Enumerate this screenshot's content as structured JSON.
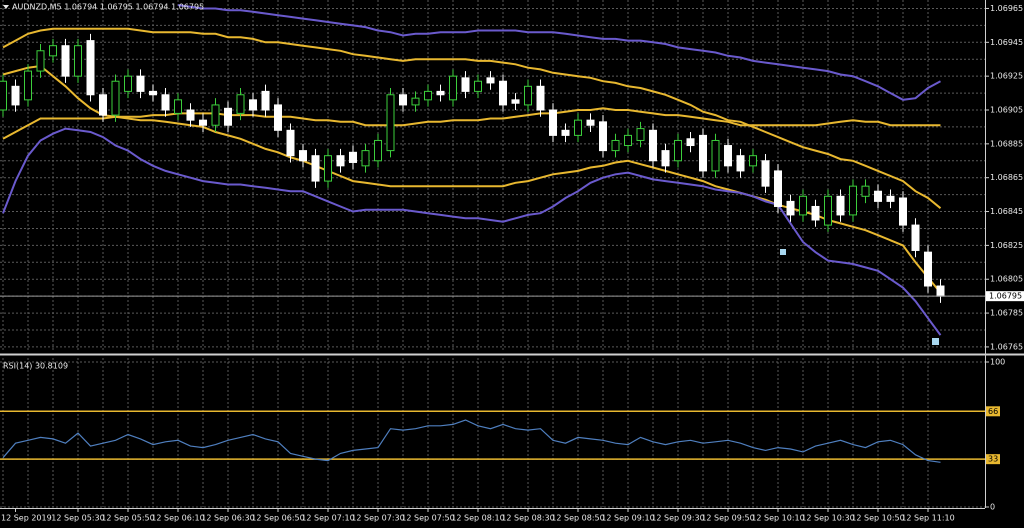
{
  "chart_data": [
    {
      "type": "candlestick",
      "title": "AUDNZD,M5 1.06794 1.06795 1.06794 1.06795",
      "categories": [
        null,
        "12 Sep 2019",
        null,
        null,
        null,
        null,
        "12 Sep 05:30",
        null,
        null,
        null,
        "12 Sep 05:50",
        null,
        null,
        null,
        "12 Sep 06:10",
        null,
        null,
        null,
        "12 Sep 06:30",
        null,
        null,
        null,
        "12 Sep 06:50",
        null,
        null,
        null,
        "12 Sep 07:10",
        null,
        null,
        null,
        "12 Sep 07:30",
        null,
        null,
        null,
        "12 Sep 07:50",
        null,
        null,
        null,
        "12 Sep 08:10",
        null,
        null,
        null,
        "12 Sep 08:30",
        null,
        null,
        null,
        "12 Sep 08:50",
        null,
        null,
        null,
        "12 Sep 09:10",
        null,
        null,
        null,
        "12 Sep 09:30",
        null,
        null,
        null,
        "12 Sep 09:50",
        null,
        null,
        null,
        "12 Sep 10:10",
        null,
        null,
        null,
        "12 Sep 10:30",
        null,
        null,
        null,
        "12 Sep 10:50",
        null,
        null,
        null,
        "12 Sep 11:10",
        null
      ],
      "open": [
        1.06905,
        1.06919,
        1.06911,
        1.06928,
        1.06937,
        1.06943,
        1.06925,
        1.06946,
        1.06914,
        1.06902,
        1.06916,
        1.06925,
        1.06916,
        1.06914,
        1.06903,
        1.06905,
        1.06899,
        1.06896,
        1.06906,
        1.06903,
        1.06911,
        1.06916,
        1.06908,
        1.06893,
        1.06881,
        1.06878,
        1.06863,
        1.06878,
        1.0688,
        1.06872,
        1.06875,
        1.06881,
        1.06914,
        1.06908,
        1.06911,
        1.06916,
        1.06911,
        1.06924,
        1.06916,
        1.06924,
        1.06922,
        1.06911,
        1.06908,
        1.06919,
        1.06905,
        1.06893,
        1.0689,
        1.06899,
        1.06898,
        1.06881,
        1.06884,
        1.06887,
        1.06893,
        1.06881,
        1.06875,
        1.06888,
        1.0689,
        1.06869,
        1.06884,
        1.06878,
        1.06872,
        1.06875,
        1.06869,
        1.06851,
        1.06843,
        1.06848,
        1.06837,
        1.06854,
        1.06843,
        1.06854,
        1.06857,
        1.06854,
        1.06853,
        1.06837,
        1.06821,
        1.06801
      ],
      "high": [
        1.06926,
        1.06923,
        1.06932,
        1.06944,
        1.06947,
        1.06947,
        1.06947,
        1.0695,
        1.06918,
        1.06926,
        1.06929,
        1.06929,
        1.0692,
        1.06918,
        1.06915,
        1.06909,
        1.06903,
        1.06912,
        1.0691,
        1.06918,
        1.06915,
        1.0692,
        1.06912,
        1.06897,
        1.06885,
        1.06882,
        1.06882,
        1.06882,
        1.06884,
        1.06885,
        1.06891,
        1.06918,
        1.06918,
        1.06916,
        1.0692,
        1.0692,
        1.06929,
        1.06928,
        1.06926,
        1.06928,
        1.06926,
        1.06915,
        1.06923,
        1.06923,
        1.06909,
        1.06897,
        1.06903,
        1.06903,
        1.06902,
        1.06891,
        1.06894,
        1.06898,
        1.06897,
        1.06885,
        1.06891,
        1.06892,
        1.06894,
        1.06891,
        1.06888,
        1.06882,
        1.06882,
        1.06879,
        1.06873,
        1.06855,
        1.06858,
        1.06852,
        1.06858,
        1.06858,
        1.06864,
        1.06864,
        1.06861,
        1.06858,
        1.06857,
        1.06841,
        1.06825,
        1.06805
      ],
      "low": [
        1.06901,
        1.06904,
        1.06907,
        1.06924,
        1.06933,
        1.06921,
        1.06921,
        1.0691,
        1.06898,
        1.06898,
        1.06912,
        1.06912,
        1.0691,
        1.06901,
        1.06899,
        1.06895,
        1.06892,
        1.06892,
        1.06892,
        1.06899,
        1.06901,
        1.06901,
        1.06889,
        1.06874,
        1.06871,
        1.06859,
        1.06859,
        1.06868,
        1.0687,
        1.06868,
        1.06871,
        1.06877,
        1.06904,
        1.06904,
        1.06907,
        1.0691,
        1.06907,
        1.06912,
        1.06912,
        1.06917,
        1.06904,
        1.06905,
        1.06904,
        1.06901,
        1.06886,
        1.06886,
        1.06886,
        1.06892,
        1.06877,
        1.06877,
        1.0688,
        1.06883,
        1.06871,
        1.06868,
        1.06871,
        1.0688,
        1.06865,
        1.06865,
        1.06868,
        1.06865,
        1.06868,
        1.06856,
        1.06844,
        1.06839,
        1.06839,
        1.06836,
        1.06833,
        1.06839,
        1.06839,
        1.0685,
        1.06847,
        1.06847,
        1.06833,
        1.06818,
        1.06797,
        1.06791
      ],
      "close": [
        1.06922,
        1.06908,
        1.06928,
        1.0694,
        1.06943,
        1.06925,
        1.06943,
        1.06914,
        1.06902,
        1.06922,
        1.06925,
        1.06916,
        1.06914,
        1.06905,
        1.06911,
        1.06899,
        1.06896,
        1.06908,
        1.06896,
        1.06914,
        1.06905,
        1.06905,
        1.06893,
        1.06878,
        1.06875,
        1.06863,
        1.06878,
        1.06872,
        1.06874,
        1.06881,
        1.06887,
        1.06914,
        1.06908,
        1.06912,
        1.06916,
        1.06914,
        1.06925,
        1.06916,
        1.06922,
        1.06921,
        1.06908,
        1.06909,
        1.06919,
        1.06905,
        1.0689,
        1.0689,
        1.06899,
        1.06896,
        1.06881,
        1.06887,
        1.0689,
        1.06894,
        1.06875,
        1.06872,
        1.06887,
        1.06884,
        1.06869,
        1.06887,
        1.06872,
        1.06869,
        1.06878,
        1.0686,
        1.06848,
        1.06843,
        1.06854,
        1.0684,
        1.06854,
        1.06843,
        1.0686,
        1.0686,
        1.06851,
        1.06851,
        1.06837,
        1.06822,
        1.06801,
        1.06795
      ],
      "up_color": "#000000",
      "up_edge": "#3ccf3c",
      "down_color": "#ffffff",
      "down_edge": "#ffffff",
      "series": [
        {
          "color": "#6a5acd",
          "values": [
            null,
            null,
            null,
            null,
            null,
            null,
            null,
            null,
            null,
            null,
            null,
            null,
            null,
            null,
            1.06967,
            1.06966,
            1.06965,
            1.06965,
            1.06964,
            1.06964,
            1.06963,
            1.06962,
            1.06961,
            1.0696,
            1.06959,
            1.06958,
            1.06957,
            1.06956,
            1.06955,
            1.06954,
            1.06952,
            1.06951,
            1.06949,
            1.0695,
            1.0695,
            1.06951,
            1.06951,
            1.06951,
            1.06952,
            1.06952,
            1.06952,
            1.06952,
            1.06951,
            1.06951,
            1.06951,
            1.0695,
            1.06949,
            1.06948,
            1.06947,
            1.06947,
            1.06946,
            1.06946,
            1.06945,
            1.06944,
            1.06942,
            1.06941,
            1.0694,
            1.06939,
            1.06937,
            1.06936,
            1.06934,
            1.06933,
            1.06932,
            1.06931,
            1.0693,
            1.06929,
            1.06928,
            1.06926,
            1.06925,
            1.06922,
            1.06919,
            1.06915,
            1.06911,
            1.06912,
            1.06918,
            1.06922
          ]
        },
        {
          "color": "#e8b830",
          "values": [
            1.06942,
            1.06946,
            1.0695,
            1.06952,
            1.06953,
            1.06953,
            1.06953,
            1.06953,
            1.06953,
            1.06953,
            1.06953,
            1.06952,
            1.06951,
            1.06951,
            1.06951,
            1.06951,
            1.0695,
            1.0695,
            1.06948,
            1.06948,
            1.06947,
            1.06945,
            1.06945,
            1.06944,
            1.06943,
            1.06942,
            1.06941,
            1.0694,
            1.06938,
            1.06937,
            1.06936,
            1.06935,
            1.06934,
            1.06935,
            1.06935,
            1.06935,
            1.06935,
            1.06935,
            1.06934,
            1.06934,
            1.06933,
            1.06932,
            1.0693,
            1.06929,
            1.06927,
            1.06926,
            1.06925,
            1.06924,
            1.06922,
            1.06921,
            1.06919,
            1.06918,
            1.06916,
            1.06914,
            1.06911,
            1.06908,
            1.06904,
            1.06902,
            1.06899,
            1.06898,
            1.06895,
            1.06892,
            1.06889,
            1.06886,
            1.06883,
            1.06881,
            1.06879,
            1.06876,
            1.06875,
            1.06872,
            1.06869,
            1.06866,
            1.06863,
            1.06857,
            1.06853,
            1.06847
          ]
        },
        {
          "color": "#e8b830",
          "values": [
            1.06888,
            1.06892,
            1.06896,
            1.069,
            1.069,
            1.069,
            1.069,
            1.069,
            1.069,
            1.06901,
            1.06901,
            1.06901,
            1.06902,
            1.06902,
            1.06903,
            1.06903,
            1.06903,
            1.06903,
            1.06902,
            1.06902,
            1.06902,
            1.06901,
            1.06901,
            1.06901,
            1.069,
            1.06899,
            1.06899,
            1.06898,
            1.06898,
            1.06896,
            1.06896,
            1.06896,
            1.06896,
            1.06897,
            1.06898,
            1.06898,
            1.06899,
            1.06899,
            1.06899,
            1.069,
            1.069,
            1.06901,
            1.06902,
            1.06903,
            1.06903,
            1.06904,
            1.06905,
            1.06905,
            1.06906,
            1.06905,
            1.06905,
            1.06904,
            1.06903,
            1.06902,
            1.06902,
            1.06901,
            1.069,
            1.06899,
            1.06898,
            1.06896,
            1.06896,
            1.06896,
            1.06896,
            1.06896,
            1.06896,
            1.06896,
            1.06897,
            1.06898,
            1.06899,
            1.06898,
            1.06898,
            1.06896,
            1.06896,
            1.06896,
            1.06896,
            1.06896
          ]
        },
        {
          "color": "#e8b830",
          "values": [
            1.06926,
            1.06928,
            1.0693,
            1.06931,
            1.06925,
            1.06919,
            1.06912,
            1.06906,
            1.06902,
            1.06901,
            1.069,
            1.06899,
            1.06899,
            1.06898,
            1.06897,
            1.06896,
            1.06895,
            1.06892,
            1.0689,
            1.06888,
            1.06885,
            1.06882,
            1.0688,
            1.06877,
            1.06875,
            1.06872,
            1.06869,
            1.06866,
            1.06863,
            1.06862,
            1.06861,
            1.0686,
            1.0686,
            1.0686,
            1.0686,
            1.0686,
            1.0686,
            1.0686,
            1.0686,
            1.0686,
            1.0686,
            1.06862,
            1.06863,
            1.06865,
            1.06867,
            1.06868,
            1.06869,
            1.06871,
            1.06872,
            1.06874,
            1.06875,
            1.06873,
            1.06871,
            1.06869,
            1.06867,
            1.06865,
            1.06863,
            1.0686,
            1.06858,
            1.06856,
            1.06854,
            1.06852,
            1.06849,
            1.06847,
            1.06845,
            1.06843,
            1.0684,
            1.06838,
            1.06836,
            1.06834,
            1.06831,
            1.06828,
            1.06825,
            1.06815,
            1.06806,
            1.06797
          ]
        },
        {
          "color": "#6a5acd",
          "values": [
            1.06844,
            1.06863,
            1.06878,
            1.06887,
            1.06891,
            1.06894,
            1.06893,
            1.06892,
            1.06889,
            1.06884,
            1.06881,
            1.06876,
            1.06872,
            1.06869,
            1.06867,
            1.06865,
            1.06863,
            1.06862,
            1.06861,
            1.06861,
            1.0686,
            1.06859,
            1.06858,
            1.06857,
            1.06857,
            1.06854,
            1.06851,
            1.06848,
            1.06845,
            1.06846,
            1.06846,
            1.06846,
            1.06846,
            1.06845,
            1.06844,
            1.06843,
            1.06842,
            1.06841,
            1.06841,
            1.0684,
            1.06839,
            1.06841,
            1.06843,
            1.06844,
            1.06848,
            1.06853,
            1.06857,
            1.06862,
            1.06865,
            1.06867,
            1.06868,
            1.06866,
            1.06864,
            1.06863,
            1.06862,
            1.06861,
            1.0686,
            1.06858,
            1.06857,
            1.06856,
            1.06854,
            1.06851,
            1.06849,
            1.06838,
            1.06827,
            1.06821,
            1.06816,
            1.06815,
            1.06814,
            1.06812,
            1.0681,
            1.06805,
            1.068,
            1.06792,
            1.06782,
            1.06772
          ]
        }
      ],
      "current_price": 1.06795,
      "ylim": [
        1.06762,
        1.0697
      ],
      "yticks": [
        1.06965,
        1.06945,
        1.06925,
        1.06905,
        1.06885,
        1.06865,
        1.06845,
        1.06825,
        1.06805,
        1.06785,
        1.06765
      ],
      "grid": true
    },
    {
      "type": "line",
      "title": "RSI(14) 30.8109",
      "color": "#4f7fbf",
      "values": [
        34,
        44,
        46,
        48,
        47,
        44,
        51,
        42,
        44,
        46,
        50,
        47,
        43,
        45,
        46,
        42,
        41,
        43,
        46,
        48,
        50,
        47,
        45,
        37,
        35,
        33,
        32,
        37,
        39,
        40,
        41,
        54,
        53,
        54,
        56,
        56,
        57,
        60,
        56,
        54,
        57,
        54,
        53,
        54,
        46,
        44,
        48,
        47,
        46,
        44,
        43,
        48,
        45,
        43,
        45,
        46,
        44,
        45,
        46,
        44,
        41,
        39,
        41,
        40,
        38,
        42,
        44,
        46,
        43,
        41,
        45,
        46,
        43,
        36,
        32,
        30.8109
      ],
      "levels": [
        66,
        33
      ],
      "level_color": "#e8b830",
      "ylim": [
        0,
        100
      ],
      "yticks": [
        100,
        66,
        33,
        0
      ],
      "grid": true
    }
  ]
}
